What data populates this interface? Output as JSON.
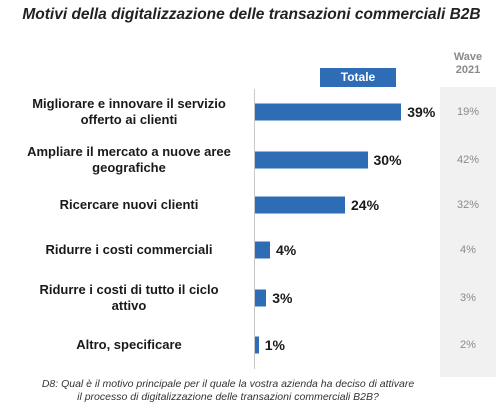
{
  "chart_data": {
    "type": "bar",
    "orientation": "horizontal",
    "title": "Motivi della digitalizzazione delle transazioni commerciali B2B",
    "categories": [
      [
        "Migliorare e innovare il servizio",
        "offerto ai clienti"
      ],
      [
        "Ampliare il mercato a nuove aree",
        "geografiche"
      ],
      [
        "Ricercare nuovi clienti"
      ],
      [
        "Ridurre i costi commerciali"
      ],
      [
        "Ridurre i costi di tutto il ciclo",
        "attivo"
      ],
      [
        "Altro, specificare"
      ]
    ],
    "series": [
      {
        "name": "Totale",
        "values": [
          39,
          30,
          24,
          4,
          3,
          1
        ],
        "labels": [
          "39%",
          "30%",
          "24%",
          "4%",
          "3%",
          "1%"
        ]
      }
    ],
    "comparison": {
      "header": [
        "Wave",
        "2021"
      ],
      "values": [
        19,
        42,
        32,
        4,
        3,
        2
      ],
      "labels": [
        "19%",
        "42%",
        "32%",
        "4%",
        "3%",
        "2%"
      ]
    },
    "xlim": [
      0,
      40
    ],
    "colors": {
      "bar": "#2e6cb5",
      "wave_text": "#8a8a8a",
      "wave_bg": "#f1f1f1"
    },
    "legend_position": "top-right"
  },
  "footnote": [
    "D8: Qual è il motivo principale per il quale la vostra azienda ha deciso di attivare",
    "il processo di digitalizzazione delle transazioni commerciali B2B?"
  ]
}
